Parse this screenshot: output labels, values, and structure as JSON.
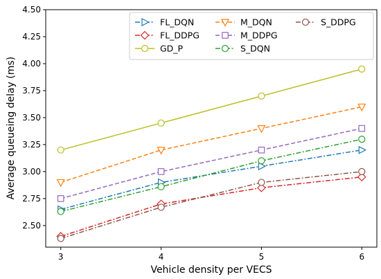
{
  "chart_data": {
    "type": "line",
    "xlabel": "Vehicle density per VECS",
    "ylabel": "Average queueing delay (ms)",
    "x": [
      3,
      4,
      5,
      6
    ],
    "xticks": [
      "3",
      "4",
      "5",
      "6"
    ],
    "xlim": [
      2.85,
      6.15
    ],
    "ylim": [
      2.3,
      4.5
    ],
    "yticks": [
      "2.50",
      "2.75",
      "3.00",
      "3.25",
      "3.50",
      "3.75",
      "4.00",
      "4.25",
      "4.50"
    ],
    "legend_position": "top-right",
    "grid": false,
    "series": [
      {
        "name": "FL_DQN",
        "values": [
          2.65,
          2.9,
          3.05,
          3.2
        ],
        "color": "#1f77b4",
        "dash": "dashdot",
        "marker": "triangle-right"
      },
      {
        "name": "FL_DDPG",
        "values": [
          2.4,
          2.7,
          2.85,
          2.95
        ],
        "color": "#d62728",
        "dash": "dashdot",
        "marker": "diamond"
      },
      {
        "name": "GD_P",
        "values": [
          3.2,
          3.45,
          3.7,
          3.95
        ],
        "color": "#bcbd22",
        "dash": "solid",
        "marker": "circle"
      },
      {
        "name": "M_DQN",
        "values": [
          2.9,
          3.2,
          3.4,
          3.6
        ],
        "color": "#ff7f0e",
        "dash": "dashed",
        "marker": "triangle-down"
      },
      {
        "name": "M_DDPG",
        "values": [
          2.75,
          3.0,
          3.2,
          3.4
        ],
        "color": "#9467bd",
        "dash": "dashed",
        "marker": "square"
      },
      {
        "name": "S_DQN",
        "values": [
          2.63,
          2.86,
          3.1,
          3.3
        ],
        "color": "#2ca02c",
        "dash": "dashdot",
        "marker": "circle"
      },
      {
        "name": "S_DDPG",
        "values": [
          2.38,
          2.67,
          2.9,
          3.0
        ],
        "color": "#8c564b",
        "dash": "dashdot",
        "marker": "circle"
      }
    ]
  }
}
